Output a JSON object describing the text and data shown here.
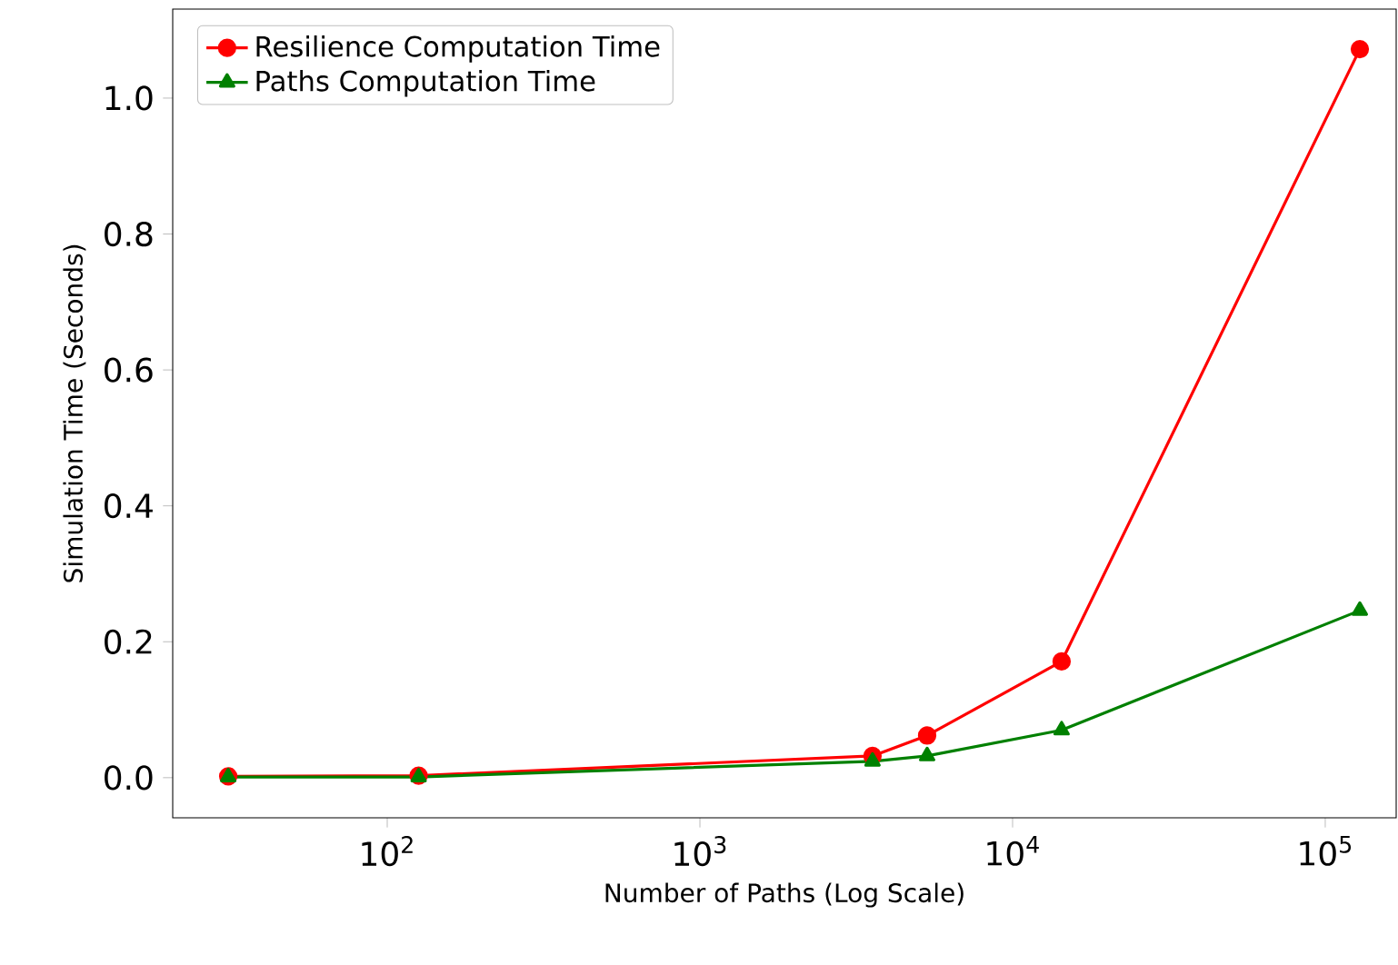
{
  "chart_data": {
    "type": "line",
    "xlabel": "Number of Paths (Log Scale)",
    "ylabel": "Simulation Time (Seconds)",
    "x": [
      31,
      126,
      3565,
      5330,
      14350,
      129000
    ],
    "series": [
      {
        "name": "Resilience Computation Time",
        "color": "#ff0000",
        "marker": "circle",
        "values": [
          0.002,
          0.003,
          0.032,
          0.062,
          0.171,
          1.072
        ]
      },
      {
        "name": "Paths Computation Time",
        "color": "#008000",
        "marker": "triangle",
        "values": [
          0.001,
          0.001,
          0.024,
          0.032,
          0.07,
          0.246
        ]
      }
    ],
    "log": "x",
    "xlim": [
      20.6,
      168600
    ],
    "ylim": [
      -0.059,
      1.131
    ],
    "xticks": [
      {
        "value": 100,
        "label": "10$^{2}$"
      },
      {
        "value": 1000,
        "label": "10$^{3}$"
      },
      {
        "value": 10000,
        "label": "10$^{4}$"
      },
      {
        "value": 100000,
        "label": "10$^{5}$"
      }
    ],
    "yticks": [
      {
        "value": 0,
        "label": "0.0"
      },
      {
        "value": 0.2,
        "label": "0.2"
      },
      {
        "value": 0.4,
        "label": "0.4"
      },
      {
        "value": 0.6,
        "label": "0.6"
      },
      {
        "value": 0.8,
        "label": "0.8"
      },
      {
        "value": 1.0,
        "label": "1.0"
      }
    ],
    "grid": false,
    "legend": "top left",
    "line_style": "solid"
  }
}
